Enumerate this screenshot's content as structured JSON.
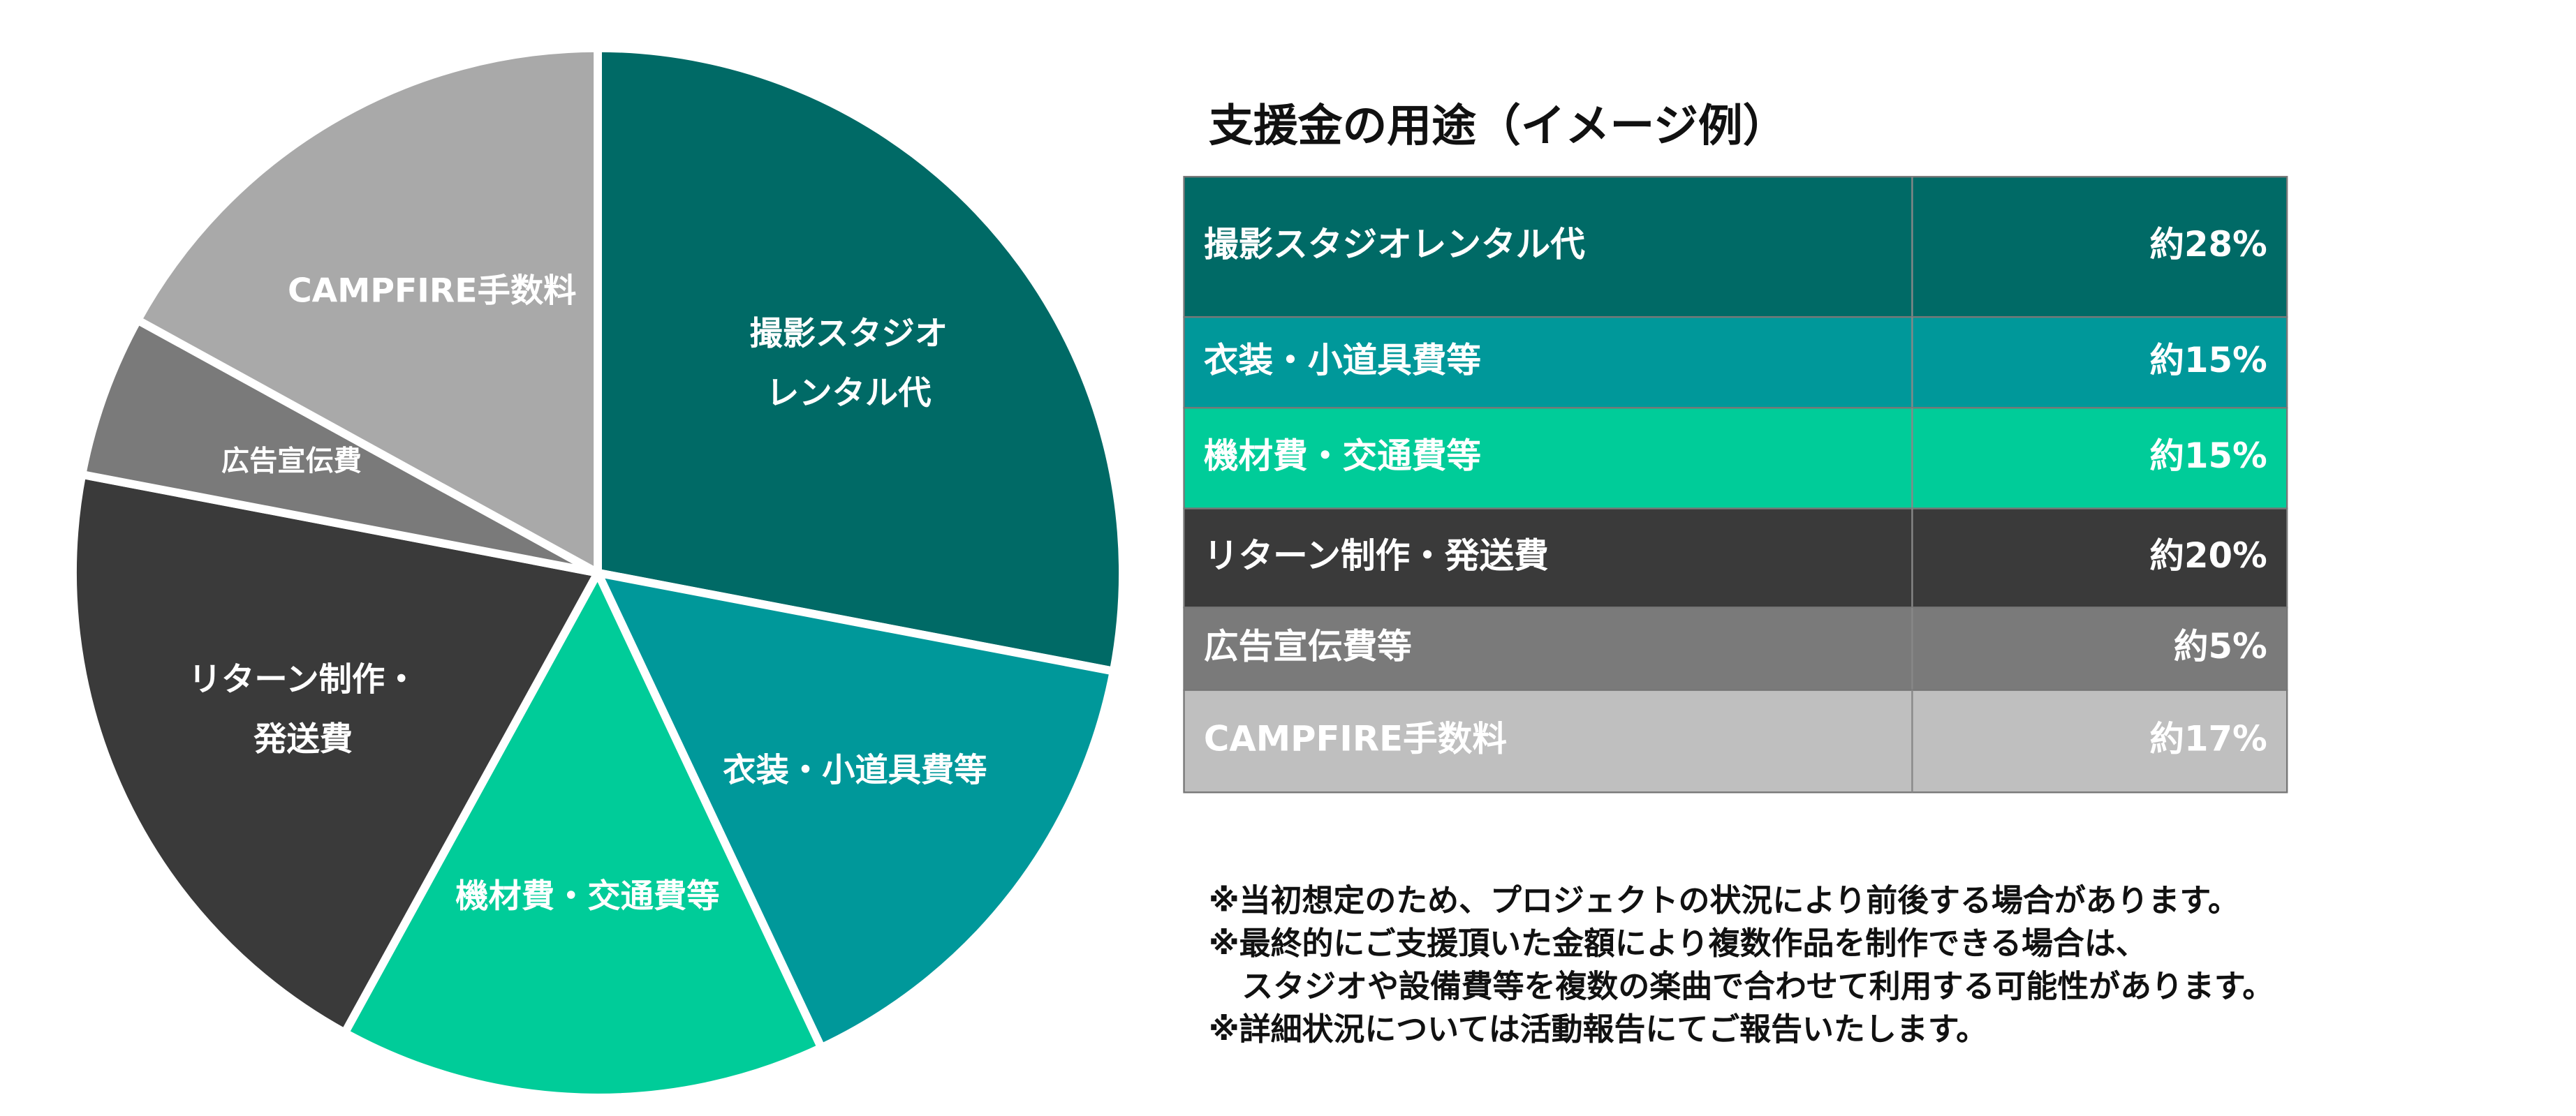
{
  "chart_data": {
    "type": "pie",
    "title": "支援金の用途（イメージ例）",
    "categories": [
      "撮影スタジオレンタル代",
      "衣装・小道具費等",
      "機材費・交通費等",
      "リターン制作・発送費",
      "広告宣伝費等",
      "CAMPFIRE手数料"
    ],
    "values": [
      28,
      15,
      15,
      20,
      5,
      17
    ],
    "value_labels": [
      "約28%",
      "約15%",
      "約15%",
      "約20%",
      "約5%",
      "約17%"
    ],
    "colors": [
      "#006a66",
      "#00989a",
      "#00cc99",
      "#3a3a3a",
      "#7a7a7a",
      "#a9a9a9"
    ],
    "table_colors": [
      "#006a66",
      "#00989a",
      "#00cc99",
      "#3a3a3a",
      "#7a7a7a",
      "#bfbfbf"
    ],
    "slice_labels": [
      [
        "撮影スタジオ",
        "レンタル代"
      ],
      [
        "衣装・小道具費等"
      ],
      [
        "機材費・交通費等"
      ],
      [
        "リターン制作・",
        "発送費"
      ],
      [
        "広告宣伝費"
      ],
      [
        "CAMPFIRE手数料"
      ]
    ],
    "notes": [
      "※当初想定のため、プロジェクトの状況により前後する場合があります。",
      "※最終的にご支援頂いた金額により複数作品を制作できる場合は、",
      "スタジオや設備費等を複数の楽曲で合わせて利用する可能性があります。",
      "※詳細状況については活動報告にてご報告いたします。"
    ]
  }
}
